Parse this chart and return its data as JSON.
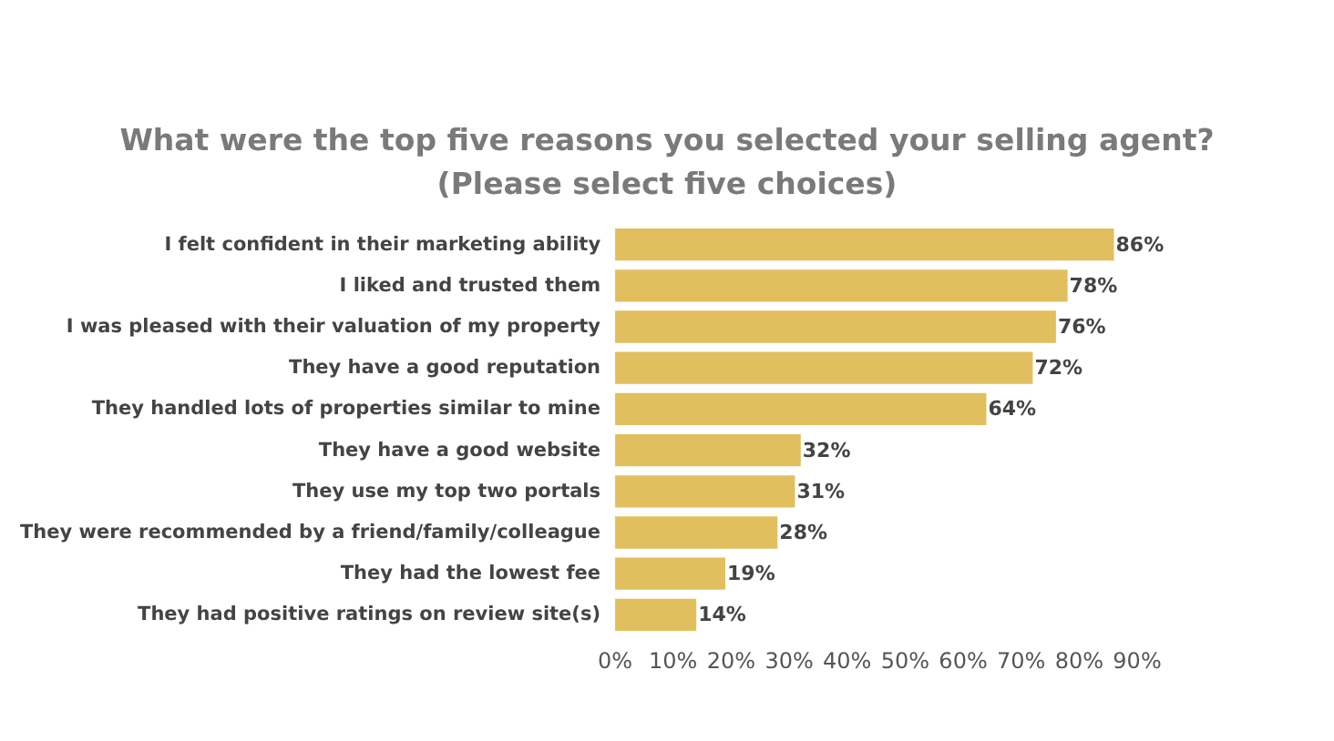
{
  "chart_data": {
    "type": "bar",
    "orientation": "horizontal",
    "title": "What were the top five reasons you selected your selling agent?\n(Please select five choices)",
    "categories": [
      "I felt confident in their marketing ability",
      "I liked and trusted them",
      "I was pleased with their valuation of my property",
      "They have a good reputation",
      "They handled lots of properties similar to mine",
      "They have a good website",
      "They use my top two portals",
      "They were recommended by a friend/family/colleague",
      "They had the lowest fee",
      "They had positive ratings on review site(s)"
    ],
    "values": [
      86,
      78,
      76,
      72,
      64,
      32,
      31,
      28,
      19,
      14
    ],
    "value_labels": [
      "86%",
      "78%",
      "76%",
      "72%",
      "64%",
      "32%",
      "31%",
      "28%",
      "19%",
      "14%"
    ],
    "color": "#e2bf5e",
    "xlim": [
      0,
      90
    ],
    "xticks": [
      {
        "value": 0,
        "label": "0%"
      },
      {
        "value": 10,
        "label": "10%"
      },
      {
        "value": 20,
        "label": "20%"
      },
      {
        "value": 30,
        "label": "30%"
      },
      {
        "value": 40,
        "label": "40%"
      },
      {
        "value": 50,
        "label": "50%"
      },
      {
        "value": 60,
        "label": "60%"
      },
      {
        "value": 70,
        "label": "70%"
      },
      {
        "value": 80,
        "label": "80%"
      },
      {
        "value": 90,
        "label": "90%"
      }
    ],
    "grid": false
  }
}
